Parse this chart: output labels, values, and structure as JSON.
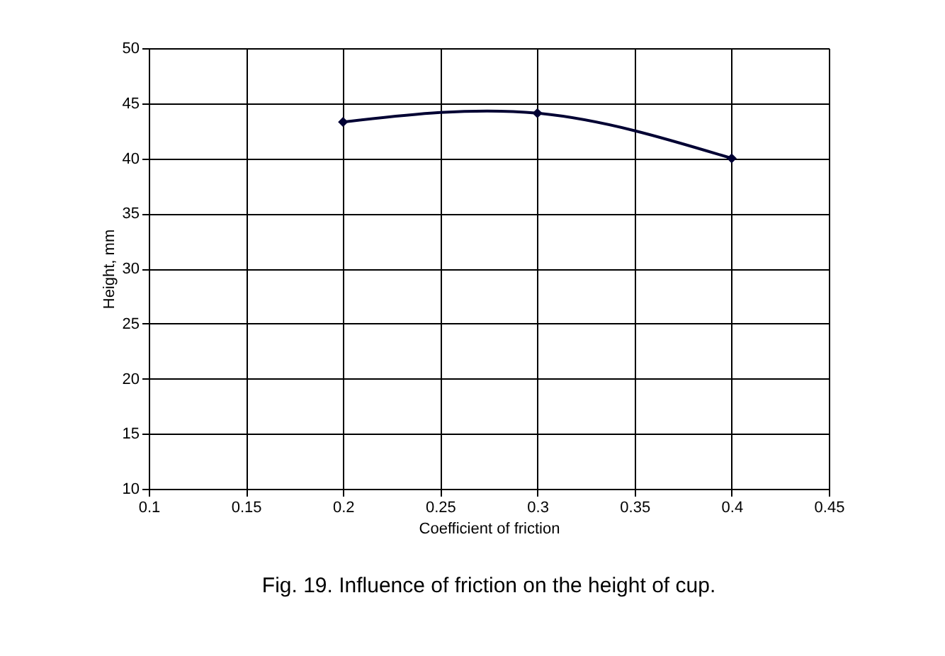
{
  "chart_data": {
    "type": "line",
    "xlabel": "Coefficient of friction",
    "ylabel": "Height, mm",
    "annotations": [
      "Fig. 19. Influence of friction on the height of cup."
    ],
    "x": [
      0.2,
      0.3,
      0.4
    ],
    "series": [
      {
        "color": "#000033",
        "values": [
          43.3,
          44.1,
          40.0
        ]
      }
    ],
    "xlim": [
      0.1,
      0.45
    ],
    "xticks": [
      0.1,
      0.15,
      0.2,
      0.25,
      0.3,
      0.35,
      0.4,
      0.45
    ],
    "ylim": [
      10,
      50
    ],
    "yticks": [
      10,
      15,
      20,
      25,
      30,
      35,
      40,
      45,
      50
    ],
    "grid": true,
    "marker": "diamond",
    "line_style": "solid"
  }
}
